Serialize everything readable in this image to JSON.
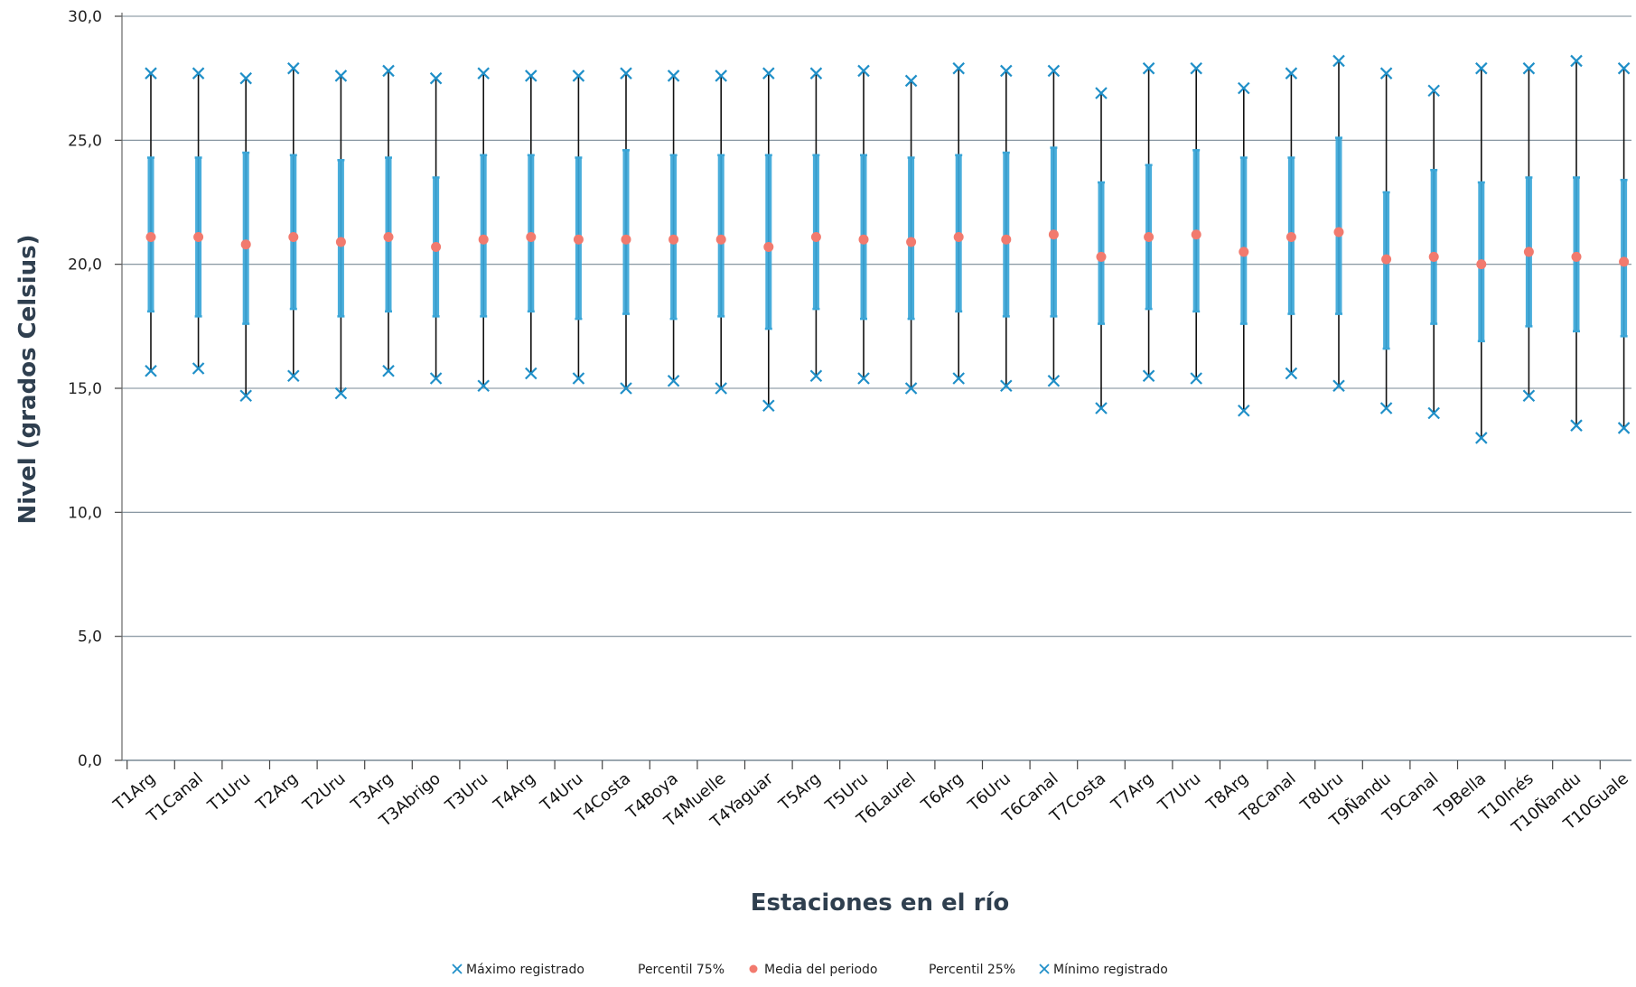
{
  "chart_data": {
    "type": "box",
    "title": "",
    "ylabel": "Nivel (grados Celsius)",
    "xlabel": "Estaciones en el río",
    "ylim": [
      0,
      30
    ],
    "yticks": [
      "0,0",
      "5,0",
      "10,0",
      "15,0",
      "20,0",
      "25,0",
      "30,0"
    ],
    "grid": true,
    "legend_position": "bottom",
    "colors": {
      "max_min_marker": "#1f8fc8",
      "percentile_bar": "#3aa6d8",
      "whisker": "#111111",
      "mean_marker": "#f27a6e",
      "grid": "#7a8a96"
    },
    "categories": [
      "T1Arg",
      "T1Canal",
      "T1Uru",
      "T2Arg",
      "T2Uru",
      "T3Arg",
      "T3Abrigo",
      "T3Uru",
      "T4Arg",
      "T4Uru",
      "T4Costa",
      "T4Boya",
      "T4Muelle",
      "T4Yaguar",
      "T5Arg",
      "T5Uru",
      "T6Laurel",
      "T6Arg",
      "T6Uru",
      "T6Canal",
      "T7Costa",
      "T7Arg",
      "T7Uru",
      "T8Arg",
      "T8Canal",
      "T8Uru",
      "T9Ñandu",
      "T9Canal",
      "T9Bella",
      "T10Inés",
      "T10Ñandu",
      "T10Guale"
    ],
    "series": [
      {
        "name": "Máximo registrado",
        "values": [
          27.7,
          27.7,
          27.5,
          27.9,
          27.6,
          27.8,
          27.5,
          27.7,
          27.6,
          27.6,
          27.7,
          27.6,
          27.6,
          27.7,
          27.7,
          27.8,
          27.4,
          27.9,
          27.8,
          27.8,
          26.9,
          27.9,
          27.9,
          27.1,
          27.7,
          28.2,
          27.7,
          27.0,
          27.9,
          27.9,
          28.2,
          27.9
        ]
      },
      {
        "name": "Percentil 75%",
        "values": [
          24.3,
          24.3,
          24.5,
          24.4,
          24.2,
          24.3,
          23.5,
          24.4,
          24.4,
          24.3,
          24.6,
          24.4,
          24.4,
          24.4,
          24.4,
          24.4,
          24.3,
          24.4,
          24.5,
          24.7,
          23.3,
          24.0,
          24.6,
          24.3,
          24.3,
          25.1,
          22.9,
          23.8,
          23.3,
          23.5,
          23.5,
          23.4
        ]
      },
      {
        "name": "Media del periodo",
        "values": [
          21.1,
          21.1,
          20.8,
          21.1,
          20.9,
          21.1,
          20.7,
          21.0,
          21.1,
          21.0,
          21.0,
          21.0,
          21.0,
          20.7,
          21.1,
          21.0,
          20.9,
          21.1,
          21.0,
          21.2,
          20.3,
          21.1,
          21.2,
          20.5,
          21.1,
          21.3,
          20.2,
          20.3,
          20.0,
          20.5,
          20.3,
          20.1
        ]
      },
      {
        "name": "Percentil 25%",
        "values": [
          18.1,
          17.9,
          17.6,
          18.2,
          17.9,
          18.1,
          17.9,
          17.9,
          18.1,
          17.8,
          18.0,
          17.8,
          17.9,
          17.4,
          18.2,
          17.8,
          17.8,
          18.1,
          17.9,
          17.9,
          17.6,
          18.2,
          18.1,
          17.6,
          18.0,
          18.0,
          16.6,
          17.6,
          16.9,
          17.5,
          17.3,
          17.1
        ]
      },
      {
        "name": "Mínimo registrado",
        "values": [
          15.7,
          15.8,
          14.7,
          15.5,
          14.8,
          15.7,
          15.4,
          15.1,
          15.6,
          15.4,
          15.0,
          15.3,
          15.0,
          14.3,
          15.5,
          15.4,
          15.0,
          15.4,
          15.1,
          15.3,
          14.2,
          15.5,
          15.4,
          14.1,
          15.6,
          15.1,
          14.2,
          14.0,
          13.0,
          14.7,
          13.5,
          13.4
        ]
      }
    ]
  }
}
